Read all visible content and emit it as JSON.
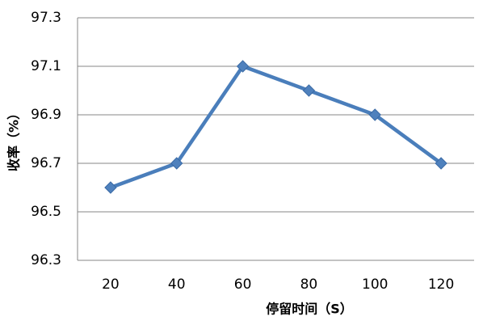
{
  "chart_data": {
    "type": "line",
    "x_label": "停留时间（S）",
    "y_label": "收率（%）",
    "categories": [
      "20",
      "40",
      "60",
      "80",
      "100",
      "120"
    ],
    "values": [
      96.6,
      96.7,
      97.1,
      97.0,
      96.9,
      96.7
    ],
    "color": "#4a7ebb",
    "ylim": [
      96.3,
      97.3
    ],
    "yticks": [
      96.3,
      96.5,
      96.7,
      96.9,
      97.1,
      97.3
    ],
    "grid": true
  }
}
